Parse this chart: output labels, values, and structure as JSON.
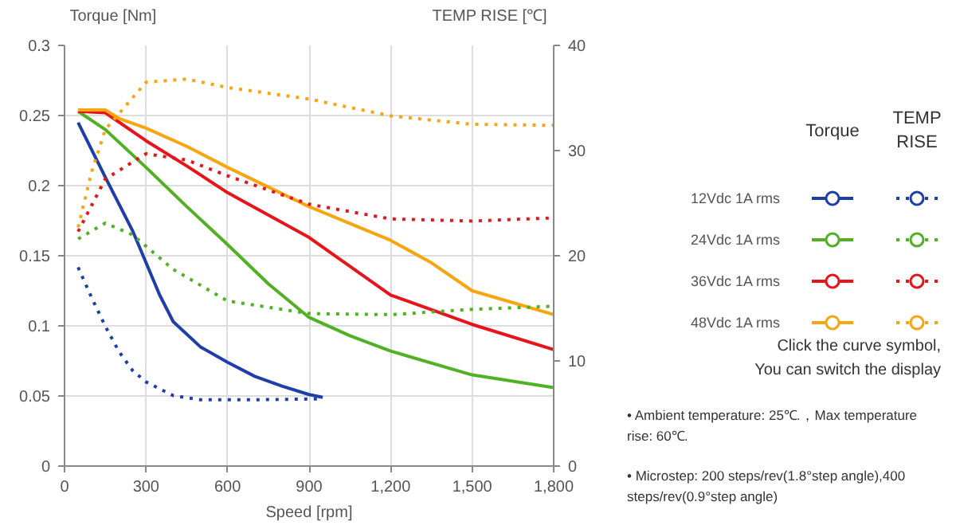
{
  "chart_data": {
    "type": "line",
    "ylabel": "Torque [Nm]",
    "y2label": "TEMP RISE [℃]",
    "xlabel": "Speed [rpm]",
    "xlim": [
      0,
      1800
    ],
    "xticks": [
      0,
      300,
      600,
      900,
      {
        "value": 1200,
        "label": "1,200"
      },
      {
        "value": 1500,
        "label": "1,500"
      },
      {
        "value": 1800,
        "label": "1,800"
      }
    ],
    "ylim": [
      0,
      0.3
    ],
    "yticks": [
      0,
      0.05,
      0.1,
      0.15,
      0.2,
      0.25,
      0.3
    ],
    "y2lim": [
      0,
      40
    ],
    "y2ticks": [
      0,
      10,
      20,
      30,
      40
    ],
    "grid": true,
    "legend": "right",
    "marker": "none",
    "series": [
      {
        "name": "12Vdc 1A rms",
        "color": "#1f3fa8",
        "x": [
          50,
          150,
          250,
          300,
          350,
          400,
          500,
          600,
          700,
          800,
          900,
          950
        ],
        "values": [
          0.245,
          0.206,
          0.168,
          0.145,
          0.122,
          0.103,
          0.085,
          0.074,
          0.064,
          0.057,
          0.051,
          0.049
        ]
      },
      {
        "name": "24Vdc 1A rms",
        "color": "#52b024",
        "x": [
          50,
          150,
          300,
          450,
          600,
          750,
          900,
          1050,
          1200,
          1500,
          1800
        ],
        "values": [
          0.253,
          0.24,
          0.213,
          0.185,
          0.158,
          0.13,
          0.106,
          0.093,
          0.082,
          0.065,
          0.056
        ]
      },
      {
        "name": "36Vdc 1A rms",
        "color": "#e8141b",
        "x": [
          50,
          150,
          300,
          450,
          600,
          900,
          1200,
          1500,
          1800
        ],
        "values": [
          0.253,
          0.252,
          0.232,
          0.214,
          0.195,
          0.163,
          0.122,
          0.101,
          0.083
        ]
      },
      {
        "name": "48Vdc 1A rms",
        "color": "#f7a511",
        "x": [
          50,
          150,
          200,
          300,
          450,
          600,
          900,
          1200,
          1350,
          1500,
          1800
        ],
        "values": [
          0.254,
          0.254,
          0.248,
          0.241,
          0.228,
          0.213,
          0.185,
          0.161,
          0.145,
          0.125,
          0.108
        ]
      },
      {
        "color": "#1f3fa8",
        "axis": "y2",
        "line_style": "dotted",
        "x": [
          50,
          100,
          150,
          200,
          250,
          300,
          400,
          500,
          700,
          950
        ],
        "values": [
          18.9,
          16,
          13.3,
          10.9,
          9.1,
          8,
          6.7,
          6.3,
          6.3,
          6.4
        ]
      },
      {
        "color": "#52b024",
        "axis": "y2",
        "line_style": "dotted",
        "x": [
          50,
          150,
          250,
          400,
          600,
          900,
          1200,
          1500,
          1800
        ],
        "values": [
          21.6,
          23.1,
          22,
          18.7,
          15.7,
          14.5,
          14.4,
          14.9,
          15.2
        ]
      },
      {
        "color": "#e8141b",
        "axis": "y2",
        "line_style": "dotted",
        "x": [
          50,
          150,
          300,
          450,
          600,
          900,
          1200,
          1500,
          1800
        ],
        "values": [
          22.3,
          27.3,
          29.7,
          29.1,
          27.6,
          24.9,
          23.5,
          23.3,
          23.6
        ]
      },
      {
        "color": "#f7a511",
        "axis": "y2",
        "line_style": "dotted",
        "x": [
          50,
          100,
          150,
          300,
          450,
          600,
          900,
          1200,
          1500,
          1800
        ],
        "values": [
          22.7,
          28,
          32,
          36.5,
          36.8,
          36,
          34.9,
          33.3,
          32.5,
          32.4
        ]
      }
    ],
    "annotations": [
      "Torque",
      "TEMP RISE",
      "Click the curve symbol,",
      "You can switch the display",
      "•  Ambient temperature: 25℃.，Max temperature rise: 60℃.",
      "•  Microstep: 200 steps/rev(1.8°step angle),400 steps/rev(0.9°step angle)"
    ]
  }
}
